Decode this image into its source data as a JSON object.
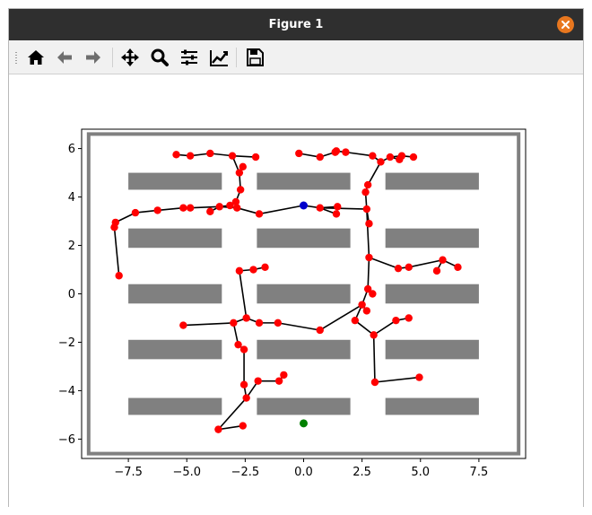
{
  "window": {
    "title": "Figure 1",
    "close_icon": "close-icon"
  },
  "toolbar": {
    "items": [
      {
        "name": "home",
        "icon": "home-icon"
      },
      {
        "name": "back",
        "icon": "back-arrow-icon"
      },
      {
        "name": "forward",
        "icon": "forward-arrow-icon"
      },
      {
        "name": "pan",
        "icon": "pan-move-icon"
      },
      {
        "name": "zoom",
        "icon": "zoom-magnifier-icon"
      },
      {
        "name": "configure-subplots",
        "icon": "sliders-icon"
      },
      {
        "name": "edit-axes",
        "icon": "edit-curve-icon"
      },
      {
        "name": "save",
        "icon": "floppy-save-icon"
      }
    ]
  },
  "chart_data": {
    "type": "scatter",
    "xlim": [
      -9.5,
      9.5
    ],
    "ylim": [
      -6.8,
      6.8
    ],
    "xticks": [
      -7.5,
      -5.0,
      -2.5,
      0.0,
      2.5,
      5.0,
      7.5
    ],
    "xtick_labels": [
      "−7.5",
      "−5.0",
      "−2.5",
      "0.0",
      "2.5",
      "5.0",
      "7.5"
    ],
    "yticks": [
      -6,
      -4,
      -2,
      0,
      2,
      4,
      6
    ],
    "ytick_labels": [
      "−6",
      "−4",
      "−2",
      "0",
      "2",
      "4",
      "6"
    ],
    "grid": false,
    "colors": {
      "node": "#ff0000",
      "edge": "#000000",
      "obstacle": "#808080",
      "start": "#0000cc",
      "goal": "#008000"
    },
    "boundary": {
      "x0": -9.2,
      "x1": 9.2,
      "y0": -6.6,
      "y1": 6.6
    },
    "obstacles": [
      {
        "x0": -7.5,
        "x1": -3.5,
        "y0": 4.3,
        "y1": 5.0
      },
      {
        "x0": -2.0,
        "x1": 2.0,
        "y0": 4.3,
        "y1": 5.0
      },
      {
        "x0": 3.5,
        "x1": 7.5,
        "y0": 4.3,
        "y1": 5.0
      },
      {
        "x0": -7.5,
        "x1": -3.5,
        "y0": 1.9,
        "y1": 2.7
      },
      {
        "x0": -2.0,
        "x1": 2.0,
        "y0": 1.9,
        "y1": 2.7
      },
      {
        "x0": 3.5,
        "x1": 7.5,
        "y0": 1.9,
        "y1": 2.7
      },
      {
        "x0": -7.5,
        "x1": -3.5,
        "y0": -0.4,
        "y1": 0.4
      },
      {
        "x0": -2.0,
        "x1": 2.0,
        "y0": -0.4,
        "y1": 0.4
      },
      {
        "x0": 3.5,
        "x1": 7.5,
        "y0": -0.4,
        "y1": 0.4
      },
      {
        "x0": -7.5,
        "x1": -3.5,
        "y0": -2.7,
        "y1": -1.9
      },
      {
        "x0": -2.0,
        "x1": 2.0,
        "y0": -2.7,
        "y1": -1.9
      },
      {
        "x0": 3.5,
        "x1": 7.5,
        "y0": -2.7,
        "y1": -1.9
      },
      {
        "x0": -7.5,
        "x1": -3.5,
        "y0": -5.0,
        "y1": -4.3
      },
      {
        "x0": -2.0,
        "x1": 2.0,
        "y0": -5.0,
        "y1": -4.3
      },
      {
        "x0": 3.5,
        "x1": 7.5,
        "y0": -5.0,
        "y1": -4.3
      }
    ],
    "start": [
      0.0,
      3.65
    ],
    "goal": [
      0.0,
      -5.35
    ],
    "edges": [
      [
        [
          0.0,
          3.65
        ],
        [
          0.7,
          3.55
        ]
      ],
      [
        [
          0.7,
          3.55
        ],
        [
          1.4,
          3.3
        ]
      ],
      [
        [
          0.7,
          3.55
        ],
        [
          1.45,
          3.6
        ]
      ],
      [
        [
          0.7,
          3.55
        ],
        [
          2.7,
          3.5
        ]
      ],
      [
        [
          0.0,
          3.65
        ],
        [
          -1.9,
          3.3
        ]
      ],
      [
        [
          -1.9,
          3.3
        ],
        [
          -2.85,
          3.55
        ]
      ],
      [
        [
          -2.85,
          3.55
        ],
        [
          -3.6,
          3.6
        ]
      ],
      [
        [
          -3.6,
          3.6
        ],
        [
          -4.0,
          3.4
        ]
      ],
      [
        [
          -3.6,
          3.6
        ],
        [
          -4.85,
          3.55
        ]
      ],
      [
        [
          -4.85,
          3.55
        ],
        [
          -5.15,
          3.55
        ]
      ],
      [
        [
          -5.15,
          3.55
        ],
        [
          -6.25,
          3.45
        ]
      ],
      [
        [
          -6.25,
          3.45
        ],
        [
          -7.2,
          3.35
        ]
      ],
      [
        [
          -7.2,
          3.35
        ],
        [
          -8.05,
          2.95
        ]
      ],
      [
        [
          -8.05,
          2.95
        ],
        [
          -8.1,
          2.75
        ]
      ],
      [
        [
          -8.1,
          2.75
        ],
        [
          -7.9,
          0.75
        ]
      ],
      [
        [
          -3.6,
          3.6
        ],
        [
          -3.15,
          3.65
        ]
      ],
      [
        [
          -2.85,
          3.55
        ],
        [
          -2.9,
          3.8
        ]
      ],
      [
        [
          -2.9,
          3.8
        ],
        [
          -2.7,
          4.3
        ]
      ],
      [
        [
          -2.7,
          4.3
        ],
        [
          -2.75,
          5.0
        ]
      ],
      [
        [
          -2.75,
          5.0
        ],
        [
          -2.6,
          5.25
        ]
      ],
      [
        [
          -2.75,
          5.0
        ],
        [
          -3.05,
          5.7
        ]
      ],
      [
        [
          -3.05,
          5.7
        ],
        [
          -4.0,
          5.8
        ]
      ],
      [
        [
          -4.0,
          5.8
        ],
        [
          -4.85,
          5.7
        ]
      ],
      [
        [
          -4.85,
          5.7
        ],
        [
          -5.45,
          5.75
        ]
      ],
      [
        [
          -3.05,
          5.7
        ],
        [
          -2.05,
          5.65
        ]
      ],
      [
        [
          2.7,
          3.5
        ],
        [
          2.8,
          2.9
        ]
      ],
      [
        [
          2.7,
          3.5
        ],
        [
          2.65,
          4.2
        ]
      ],
      [
        [
          2.65,
          4.2
        ],
        [
          2.75,
          4.5
        ]
      ],
      [
        [
          2.75,
          4.5
        ],
        [
          3.3,
          5.45
        ]
      ],
      [
        [
          3.3,
          5.45
        ],
        [
          2.95,
          5.7
        ]
      ],
      [
        [
          3.3,
          5.45
        ],
        [
          3.7,
          5.65
        ]
      ],
      [
        [
          3.7,
          5.65
        ],
        [
          4.1,
          5.55
        ]
      ],
      [
        [
          3.7,
          5.65
        ],
        [
          4.2,
          5.7
        ]
      ],
      [
        [
          4.2,
          5.7
        ],
        [
          4.7,
          5.65
        ]
      ],
      [
        [
          2.95,
          5.7
        ],
        [
          1.8,
          5.85
        ]
      ],
      [
        [
          1.8,
          5.85
        ],
        [
          1.4,
          5.9
        ]
      ],
      [
        [
          1.4,
          5.9
        ],
        [
          1.35,
          5.85
        ]
      ],
      [
        [
          1.35,
          5.85
        ],
        [
          0.7,
          5.65
        ]
      ],
      [
        [
          0.7,
          5.65
        ],
        [
          -0.2,
          5.8
        ]
      ],
      [
        [
          2.7,
          3.5
        ],
        [
          2.8,
          1.5
        ]
      ],
      [
        [
          2.8,
          1.5
        ],
        [
          4.05,
          1.05
        ]
      ],
      [
        [
          4.05,
          1.05
        ],
        [
          4.5,
          1.1
        ]
      ],
      [
        [
          4.5,
          1.1
        ],
        [
          5.95,
          1.4
        ]
      ],
      [
        [
          5.95,
          1.4
        ],
        [
          6.6,
          1.1
        ]
      ],
      [
        [
          5.95,
          1.4
        ],
        [
          5.7,
          0.95
        ]
      ],
      [
        [
          2.8,
          1.5
        ],
        [
          2.75,
          0.2
        ]
      ],
      [
        [
          2.75,
          0.2
        ],
        [
          2.95,
          0.0
        ]
      ],
      [
        [
          2.75,
          0.2
        ],
        [
          2.5,
          -0.45
        ]
      ],
      [
        [
          2.5,
          -0.45
        ],
        [
          2.7,
          -0.7
        ]
      ],
      [
        [
          2.5,
          -0.45
        ],
        [
          2.2,
          -1.1
        ]
      ],
      [
        [
          2.2,
          -1.1
        ],
        [
          3.0,
          -1.7
        ]
      ],
      [
        [
          3.0,
          -1.7
        ],
        [
          3.95,
          -1.1
        ]
      ],
      [
        [
          3.95,
          -1.1
        ],
        [
          4.5,
          -1.0
        ]
      ],
      [
        [
          3.0,
          -1.7
        ],
        [
          3.05,
          -3.65
        ]
      ],
      [
        [
          3.05,
          -3.65
        ],
        [
          4.95,
          -3.45
        ]
      ],
      [
        [
          2.5,
          -0.45
        ],
        [
          0.7,
          -1.5
        ]
      ],
      [
        [
          0.7,
          -1.5
        ],
        [
          -1.1,
          -1.2
        ]
      ],
      [
        [
          -1.1,
          -1.2
        ],
        [
          -1.9,
          -1.2
        ]
      ],
      [
        [
          -1.9,
          -1.2
        ],
        [
          -2.45,
          -1.0
        ]
      ],
      [
        [
          -2.45,
          -1.0
        ],
        [
          -3.0,
          -1.2
        ]
      ],
      [
        [
          -3.0,
          -1.2
        ],
        [
          -5.15,
          -1.3
        ]
      ],
      [
        [
          -2.45,
          -1.0
        ],
        [
          -2.75,
          0.95
        ]
      ],
      [
        [
          -2.75,
          0.95
        ],
        [
          -2.15,
          1.0
        ]
      ],
      [
        [
          -2.15,
          1.0
        ],
        [
          -1.65,
          1.1
        ]
      ],
      [
        [
          -3.0,
          -1.2
        ],
        [
          -2.8,
          -2.1
        ]
      ],
      [
        [
          -2.8,
          -2.1
        ],
        [
          -2.55,
          -2.3
        ]
      ],
      [
        [
          -2.55,
          -2.3
        ],
        [
          -2.55,
          -3.75
        ]
      ],
      [
        [
          -2.55,
          -3.75
        ],
        [
          -2.45,
          -4.3
        ]
      ],
      [
        [
          -2.45,
          -4.3
        ],
        [
          -1.95,
          -3.6
        ]
      ],
      [
        [
          -1.95,
          -3.6
        ],
        [
          -1.05,
          -3.6
        ]
      ],
      [
        [
          -1.05,
          -3.6
        ],
        [
          -0.85,
          -3.35
        ]
      ],
      [
        [
          -2.45,
          -4.3
        ],
        [
          -3.65,
          -5.6
        ]
      ],
      [
        [
          -3.65,
          -5.6
        ],
        [
          -2.6,
          -5.45
        ]
      ]
    ]
  }
}
